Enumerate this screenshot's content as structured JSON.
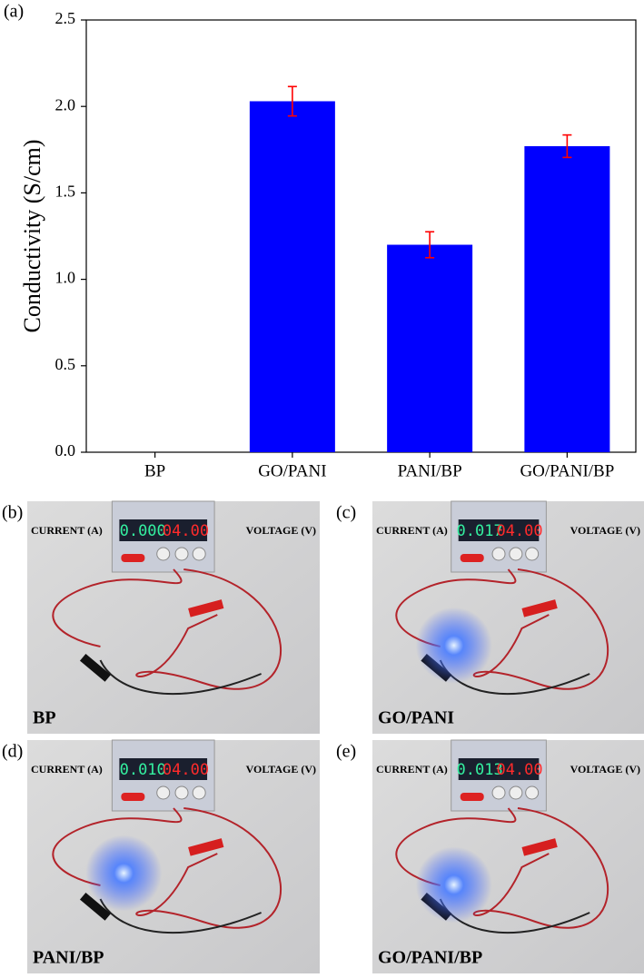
{
  "chart_data": {
    "type": "bar",
    "label": "(a)",
    "ylabel": "Conductivity (S/cm)",
    "categories": [
      "BP",
      "GO/PANI",
      "PANI/BP",
      "GO/PANI/BP"
    ],
    "values": [
      0,
      2.03,
      1.2,
      1.77
    ],
    "errors": [
      0,
      0.085,
      0.075,
      0.065
    ],
    "color": "#0000ff",
    "error_color": "#ff0000",
    "ylim": [
      0,
      2.5
    ],
    "yticks": [
      {
        "value": 0,
        "label": "0.0"
      },
      0.5,
      {
        "value": 1,
        "label": "1.0"
      },
      1.5,
      {
        "value": 2,
        "label": "2.0"
      },
      2.5
    ]
  },
  "panels": [
    {
      "label": "(b)",
      "caption": "BP",
      "current_label": "CURRENT (A)",
      "voltage_label": "VOLTAGE (V)",
      "current_display": "0.000",
      "voltage_display": "04.00"
    },
    {
      "label": "(c)",
      "caption": "GO/PANI",
      "current_label": "CURRENT (A)",
      "voltage_label": "VOLTAGE (V)",
      "current_display": "0.017",
      "voltage_display": "04.00"
    },
    {
      "label": "(d)",
      "caption": "PANI/BP",
      "current_label": "CURRENT (A)",
      "voltage_label": "VOLTAGE (V)",
      "current_display": "0.010",
      "voltage_display": "04.00"
    },
    {
      "label": "(e)",
      "caption": "GO/PANI/BP",
      "current_label": "CURRENT (A)",
      "voltage_label": "VOLTAGE (V)",
      "current_display": "0.013",
      "voltage_display": "04.00"
    }
  ]
}
